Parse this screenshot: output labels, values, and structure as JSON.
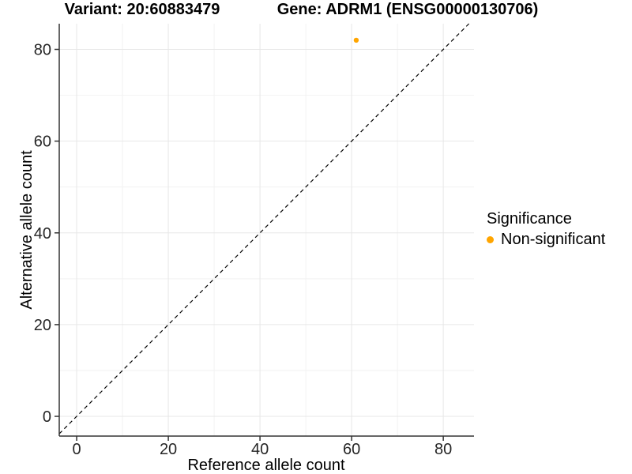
{
  "chart_data": {
    "type": "scatter",
    "titles": [
      "Variant: 20:60883479",
      "Gene: ADRM1 (ENSG00000130706)"
    ],
    "xlabel": "Reference allele count",
    "ylabel": "Alternative allele count",
    "xlim": [
      -3.8,
      86.7
    ],
    "ylim": [
      -4.3,
      85.6
    ],
    "xticks": [
      0,
      20,
      40,
      60,
      80
    ],
    "yticks": [
      0,
      20,
      40,
      60,
      80
    ],
    "xminor": [
      10,
      30,
      50,
      70
    ],
    "yminor": [
      10,
      30,
      50,
      70
    ],
    "grid": true,
    "identity_line": {
      "style": "dashed",
      "color": "#000000",
      "slope": 1,
      "intercept": 0
    },
    "series": [
      {
        "name": "Non-significant",
        "color": "#FFA500",
        "points": [
          {
            "x": 61,
            "y": 82
          }
        ]
      }
    ],
    "legend": {
      "title": "Significance",
      "position": "right",
      "items": [
        {
          "label": "Non-significant",
          "color": "#FFA500"
        }
      ]
    },
    "colors": {
      "grid_major": "#E7E7E7",
      "grid_minor": "#F2F2F2",
      "axis": "#333333",
      "tick_label": "#262626",
      "point": "#FFA500"
    }
  }
}
